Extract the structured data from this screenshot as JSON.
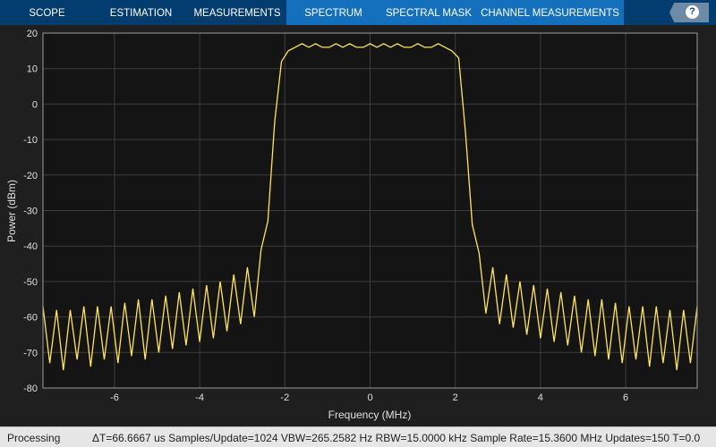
{
  "tabs": [
    {
      "label": "SCOPE",
      "active": false
    },
    {
      "label": "ESTIMATION",
      "active": false
    },
    {
      "label": "MEASUREMENTS",
      "active": false
    },
    {
      "label": "SPECTRUM",
      "active": true
    },
    {
      "label": "SPECTRAL MASK",
      "active": true
    },
    {
      "label": "CHANNEL MEASUREMENTS",
      "active": true
    }
  ],
  "help_icon": "question-mark",
  "status": {
    "state": "Processing",
    "info": "ΔT=66.6667 us  Samples/Update=1024  VBW=265.2582 Hz  RBW=15.0000 kHz  Sample Rate=15.3600 MHz  Updates=150  T=0.0"
  },
  "colors": {
    "trace": "#ffe45c",
    "tab_bar": "#033c6e",
    "active_tab": "#1470bd",
    "axes_bg": "#141414"
  },
  "chart_data": {
    "type": "line",
    "xlabel": "Frequency (MHz)",
    "ylabel": "Power (dBm)",
    "xlim": [
      -7.68,
      7.68
    ],
    "ylim": [
      -80,
      20
    ],
    "xticks": [
      -6,
      -4,
      -2,
      0,
      2,
      4,
      6
    ],
    "yticks": [
      -80,
      -70,
      -60,
      -50,
      -40,
      -30,
      -20,
      -10,
      0,
      10,
      20
    ],
    "grid": true,
    "series": [
      {
        "x": [
          -7.68,
          -7.52,
          -7.36,
          -7.2,
          -7.04,
          -6.88,
          -6.72,
          -6.56,
          -6.4,
          -6.24,
          -6.08,
          -5.92,
          -5.76,
          -5.6,
          -5.44,
          -5.28,
          -5.12,
          -4.96,
          -4.8,
          -4.64,
          -4.48,
          -4.32,
          -4.16,
          -4.0,
          -3.84,
          -3.68,
          -3.52,
          -3.36,
          -3.2,
          -3.04,
          -2.88,
          -2.72,
          -2.56,
          -2.4,
          -2.24,
          -2.08,
          -1.92,
          -1.76,
          -1.6,
          -1.44,
          -1.28,
          -1.12,
          -0.96,
          -0.8,
          -0.64,
          -0.48,
          -0.32,
          -0.16,
          0,
          0.16,
          0.32,
          0.48,
          0.64,
          0.8,
          0.96,
          1.12,
          1.28,
          1.44,
          1.6,
          1.76,
          1.92,
          2.08,
          2.24,
          2.4,
          2.56,
          2.72,
          2.88,
          3.04,
          3.2,
          3.36,
          3.52,
          3.68,
          3.84,
          4.0,
          4.16,
          4.32,
          4.48,
          4.64,
          4.8,
          4.96,
          5.12,
          5.28,
          5.44,
          5.6,
          5.76,
          5.92,
          6.08,
          6.24,
          6.4,
          6.56,
          6.72,
          6.88,
          7.04,
          7.2,
          7.36,
          7.52,
          7.68
        ],
        "y": [
          -57,
          -73,
          -58,
          -75,
          -58,
          -72,
          -57,
          -74,
          -57,
          -72,
          -57,
          -73,
          -56,
          -71,
          -55,
          -72,
          -55,
          -70,
          -54,
          -69,
          -53,
          -68,
          -52,
          -67,
          -51,
          -66,
          -50,
          -64,
          -48,
          -62,
          -46,
          -60,
          -41,
          -33,
          -5,
          12,
          15,
          16,
          17,
          16,
          17,
          16,
          16,
          17,
          16,
          17,
          16,
          16,
          17,
          16,
          17,
          16,
          17,
          16,
          16,
          17,
          16,
          16,
          17,
          16,
          15,
          13,
          -8,
          -34,
          -42,
          -59,
          -46,
          -62,
          -48,
          -63,
          -50,
          -65,
          -51,
          -66,
          -52,
          -67,
          -53,
          -68,
          -54,
          -70,
          -55,
          -71,
          -55,
          -72,
          -56,
          -73,
          -57,
          -72,
          -57,
          -74,
          -57,
          -73,
          -58,
          -75,
          -58,
          -73,
          -57
        ]
      }
    ]
  }
}
